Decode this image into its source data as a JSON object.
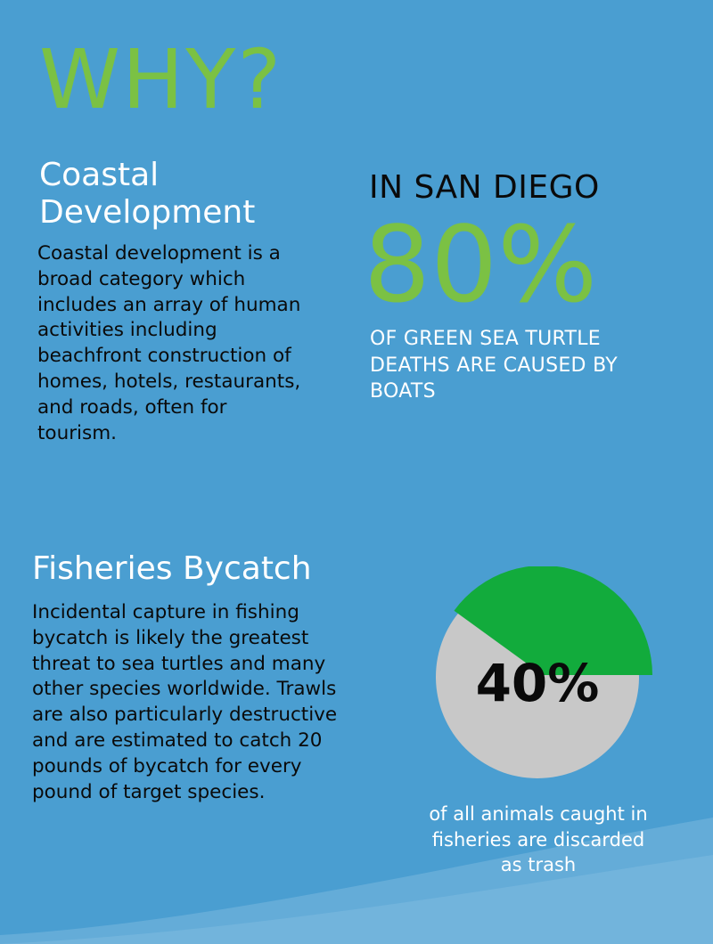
{
  "colors": {
    "background": "#4a9ed1",
    "accent_green": "#7bc144",
    "pie_green": "#12ab3c",
    "pie_gray": "#c8c8c8",
    "wave": "#7ab8df"
  },
  "title": "WHY?",
  "coastal": {
    "heading": "Coastal Development",
    "body": "Coastal development is a broad category which includes an array of human activities including beachfront construction of homes, hotels, restaurants, and roads, often for tourism."
  },
  "san_diego": {
    "heading": "IN SAN DIEGO",
    "stat": "80%",
    "caption": "OF GREEN SEA TURTLE DEATHS ARE CAUSED BY BOATS"
  },
  "bycatch": {
    "heading": "Fisheries Bycatch",
    "body": "Incidental capture in fishing bycatch is likely the greatest threat to sea turtles and many other species worldwide. Trawls are also particularly destructive and are estimated to catch 20 pounds of bycatch for every pound of target species."
  },
  "chart_data": {
    "type": "pie",
    "label": "40%",
    "caption": "of all animals caught in fisheries are discarded as trash",
    "values": [
      40,
      60
    ],
    "colors": [
      "#12ab3c",
      "#c8c8c8"
    ]
  }
}
